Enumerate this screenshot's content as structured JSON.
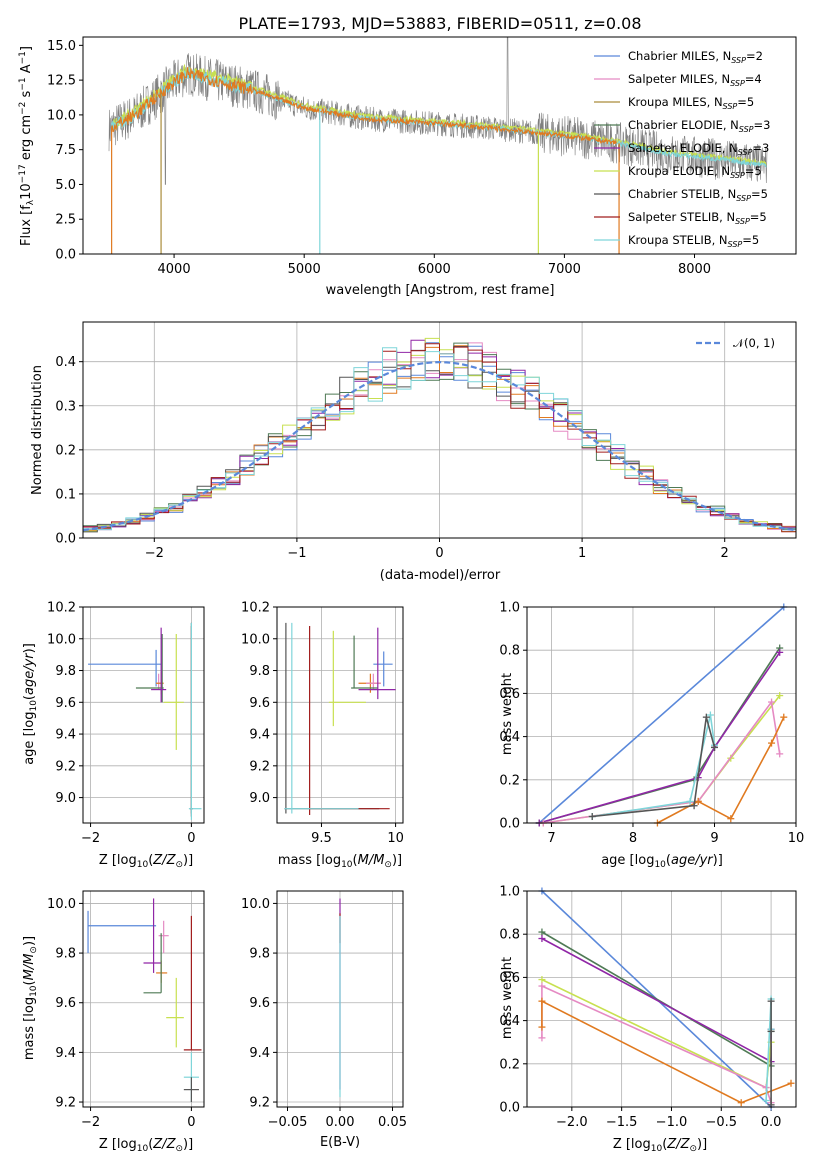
{
  "colors": [
    "#5a88da",
    "#e58ac3",
    "#aa8c3a",
    "#4f7a55",
    "#9026a6",
    "#c8e050",
    "#555555",
    "#a11d1d",
    "#7fd5d9",
    "#e07a20"
  ],
  "chart_data": [
    {
      "id": "spectrum",
      "type": "line",
      "title": "PLATE=1793, MJD=53883, FIBERID=0511, z=0.08",
      "xlabel": "wavelength [Angstrom, rest frame]",
      "ylabel": "Flux [f_λ10^−17 erg cm^−2 s^−1 A^−1]",
      "xlim": [
        3300,
        8780
      ],
      "ylim": [
        0,
        15.6
      ],
      "xticks": [
        4000,
        5000,
        6000,
        7000,
        8000
      ],
      "yticks": [
        0.0,
        2.5,
        5.0,
        7.5,
        10.0,
        12.5,
        15.0
      ],
      "continuum": {
        "x": [
          3500,
          3700,
          3950,
          4100,
          4300,
          4600,
          5000,
          5500,
          6000,
          6500,
          7000,
          7400,
          7800,
          8200,
          8550
        ],
        "y": [
          9.0,
          10.0,
          12.0,
          13.0,
          12.5,
          11.8,
          10.5,
          9.7,
          9.4,
          9.0,
          8.5,
          8.0,
          7.2,
          6.8,
          6.4
        ]
      },
      "legend_position": "upper right",
      "series": [
        {
          "name": "Chabrier MILES, N_SSP=2"
        },
        {
          "name": "Salpeter MILES, N_SSP=4"
        },
        {
          "name": "Kroupa MILES, N_SSP=5"
        },
        {
          "name": "Chabrier ELODIE, N_SSP=3"
        },
        {
          "name": "Salpeter ELODIE, N_SSP=3"
        },
        {
          "name": "Kroupa ELODIE, N_SSP=5"
        },
        {
          "name": "Chabrier STELIB, N_SSP=5"
        },
        {
          "name": "Salpeter STELIB, N_SSP=5"
        },
        {
          "name": "Kroupa STELIB, N_SSP=5"
        }
      ]
    },
    {
      "id": "residuals",
      "type": "histogram",
      "xlabel": "(data-model)/error",
      "ylabel": "Normed distribution",
      "xlim": [
        -2.5,
        2.5
      ],
      "ylim": [
        0,
        0.49
      ],
      "xticks": [
        -2,
        -1,
        0,
        1,
        2
      ],
      "yticks": [
        0.0,
        0.1,
        0.2,
        0.3,
        0.4
      ],
      "bin_width": 0.1,
      "reference": {
        "name": "𝒩(0, 1)",
        "type": "gaussian",
        "mean": 0,
        "sigma": 1
      },
      "legend_position": "upper right",
      "grid": true
    },
    {
      "id": "age_vs_Z",
      "type": "errorbar",
      "xlabel": "Z [log10(Z/Z⊙)]",
      "ylabel": "age [log10(age/yr)]",
      "xlim": [
        -2.15,
        0.25
      ],
      "ylim": [
        8.84,
        10.2
      ],
      "xticks": [
        -2,
        0
      ],
      "yticks": [
        9.0,
        9.2,
        9.4,
        9.6,
        9.8,
        10.0,
        10.2
      ],
      "points": [
        {
          "x": -0.7,
          "xlo": -2.05,
          "xhi": -0.6,
          "y": 9.84,
          "ylo": 9.7,
          "yhi": 9.93,
          "c": 0
        },
        {
          "x": -0.65,
          "xlo": -0.7,
          "xhi": -0.6,
          "y": 9.72,
          "ylo": 9.68,
          "yhi": 9.78,
          "c": 1
        },
        {
          "x": -0.6,
          "xlo": -0.7,
          "xhi": -0.55,
          "y": 9.72,
          "ylo": 9.65,
          "yhi": 9.79,
          "c": 9
        },
        {
          "x": -0.58,
          "xlo": -1.1,
          "xhi": -0.55,
          "y": 9.69,
          "ylo": 9.6,
          "yhi": 10.03,
          "c": 3
        },
        {
          "x": -0.6,
          "xlo": -0.8,
          "xhi": -0.5,
          "y": 9.68,
          "ylo": 9.6,
          "yhi": 10.07,
          "c": 4
        },
        {
          "x": -0.3,
          "xlo": -0.55,
          "xhi": -0.15,
          "y": 9.6,
          "ylo": 9.3,
          "yhi": 10.03,
          "c": 5
        },
        {
          "x": 0.0,
          "xlo": -0.02,
          "xhi": 0.02,
          "y": 8.93,
          "ylo": 8.9,
          "yhi": 10.1,
          "c": 6
        },
        {
          "x": 0.0,
          "xlo": -0.03,
          "xhi": 0.03,
          "y": 8.93,
          "ylo": 8.88,
          "yhi": 10.08,
          "c": 7
        },
        {
          "x": 0.0,
          "xlo": -0.05,
          "xhi": 0.2,
          "y": 8.93,
          "ylo": 8.86,
          "yhi": 10.1,
          "c": 8
        }
      ]
    },
    {
      "id": "age_vs_mass",
      "type": "errorbar",
      "xlabel": "mass [log10(M/M⊙)]",
      "ylabel": "",
      "xlim": [
        9.2,
        10.05
      ],
      "ylim": [
        8.84,
        10.2
      ],
      "xticks": [
        9.5,
        10.0
      ],
      "yticks": [
        9.0,
        9.2,
        9.4,
        9.6,
        9.8,
        10.0,
        10.2
      ],
      "points": [
        {
          "x": 9.92,
          "xlo": 9.85,
          "xhi": 9.98,
          "y": 9.84,
          "ylo": 9.7,
          "yhi": 9.92,
          "c": 0
        },
        {
          "x": 9.83,
          "xlo": 9.75,
          "xhi": 9.9,
          "y": 9.72,
          "ylo": 9.66,
          "yhi": 9.78,
          "c": 9
        },
        {
          "x": 9.85,
          "xlo": 9.8,
          "xhi": 9.9,
          "y": 9.72,
          "ylo": 9.68,
          "yhi": 9.78,
          "c": 1
        },
        {
          "x": 9.72,
          "xlo": 9.7,
          "xhi": 9.88,
          "y": 9.69,
          "ylo": 9.69,
          "yhi": 10.02,
          "c": 3
        },
        {
          "x": 9.88,
          "xlo": 9.75,
          "xhi": 10.0,
          "y": 9.68,
          "ylo": 9.62,
          "yhi": 10.07,
          "c": 4
        },
        {
          "x": 9.58,
          "xlo": 9.55,
          "xhi": 9.8,
          "y": 9.6,
          "ylo": 9.45,
          "yhi": 10.05,
          "c": 5
        },
        {
          "x": 9.26,
          "xlo": 9.25,
          "xhi": 9.89,
          "y": 8.93,
          "ylo": 8.9,
          "yhi": 10.1,
          "c": 6
        },
        {
          "x": 9.42,
          "xlo": 9.42,
          "xhi": 9.96,
          "y": 8.93,
          "ylo": 8.89,
          "yhi": 10.08,
          "c": 7
        },
        {
          "x": 9.3,
          "xlo": 9.25,
          "xhi": 9.75,
          "y": 8.93,
          "ylo": 8.9,
          "yhi": 10.1,
          "c": 8
        }
      ]
    },
    {
      "id": "weight_vs_age",
      "type": "line",
      "xlabel": "age [log10(age/yr)]",
      "ylabel": "mass weight",
      "xlim": [
        6.7,
        10.0
      ],
      "ylim": [
        0,
        1.0
      ],
      "xticks": [
        7,
        8,
        9,
        10
      ],
      "yticks": [
        0.0,
        0.2,
        0.4,
        0.6,
        0.8,
        1.0
      ],
      "grid": true,
      "series": [
        {
          "c": 0,
          "x": [
            6.85,
            9.85
          ],
          "y": [
            0.0,
            1.0
          ]
        },
        {
          "c": 3,
          "x": [
            6.85,
            8.75,
            9.0,
            9.8
          ],
          "y": [
            0.0,
            0.2,
            0.35,
            0.81
          ]
        },
        {
          "c": 4,
          "x": [
            6.85,
            8.8,
            9.0,
            9.8
          ],
          "y": [
            0.0,
            0.21,
            0.35,
            0.79
          ]
        },
        {
          "c": 5,
          "x": [
            6.9,
            8.8,
            9.2,
            9.8
          ],
          "y": [
            0.0,
            0.1,
            0.3,
            0.59
          ]
        },
        {
          "c": 1,
          "x": [
            6.9,
            8.8,
            9.7,
            9.8
          ],
          "y": [
            0.0,
            0.1,
            0.56,
            0.32
          ]
        },
        {
          "c": 9,
          "x": [
            8.3,
            8.8,
            9.2,
            9.7,
            9.85
          ],
          "y": [
            0.0,
            0.1,
            0.02,
            0.37,
            0.49
          ]
        },
        {
          "c": 8,
          "x": [
            7.5,
            8.7,
            8.95,
            9.0
          ],
          "y": [
            0.03,
            0.1,
            0.5,
            0.36
          ]
        },
        {
          "c": 6,
          "x": [
            7.5,
            8.75,
            8.9,
            9.0
          ],
          "y": [
            0.03,
            0.08,
            0.49,
            0.35
          ]
        }
      ]
    },
    {
      "id": "mass_vs_Z",
      "type": "errorbar",
      "xlabel": "Z [log10(Z/Z⊙)]",
      "ylabel": "mass [log10(M/M⊙)]",
      "xlim": [
        -2.15,
        0.25
      ],
      "ylim": [
        9.18,
        10.05
      ],
      "xticks": [
        -2,
        0
      ],
      "yticks": [
        9.2,
        9.4,
        9.6,
        9.8,
        10.0
      ],
      "points": [
        {
          "x": -2.05,
          "xlo": -2.05,
          "xhi": -0.7,
          "y": 9.91,
          "ylo": 9.8,
          "yhi": 9.97,
          "c": 0
        },
        {
          "x": -0.55,
          "xlo": -0.65,
          "xhi": -0.45,
          "y": 9.87,
          "ylo": 9.8,
          "yhi": 9.93,
          "c": 1
        },
        {
          "x": -0.6,
          "xlo": -0.7,
          "xhi": -0.48,
          "y": 9.72,
          "ylo": 9.68,
          "yhi": 9.77,
          "c": 9
        },
        {
          "x": -0.75,
          "xlo": -0.95,
          "xhi": -0.6,
          "y": 9.76,
          "ylo": 9.72,
          "yhi": 10.02,
          "c": 4
        },
        {
          "x": -0.6,
          "xlo": -0.95,
          "xhi": -0.6,
          "y": 9.64,
          "ylo": 9.64,
          "yhi": 9.88,
          "c": 3
        },
        {
          "x": -0.3,
          "xlo": -0.5,
          "xhi": -0.15,
          "y": 9.54,
          "ylo": 9.42,
          "yhi": 9.7,
          "c": 5
        },
        {
          "x": 0.0,
          "xlo": -0.15,
          "xhi": 0.2,
          "y": 9.41,
          "ylo": 9.41,
          "yhi": 9.95,
          "c": 7
        },
        {
          "x": 0.0,
          "xlo": -0.15,
          "xhi": 0.15,
          "y": 9.3,
          "ylo": 9.2,
          "yhi": 9.4,
          "c": 8
        },
        {
          "x": 0.0,
          "xlo": -0.15,
          "xhi": 0.15,
          "y": 9.25,
          "ylo": 9.2,
          "yhi": 9.3,
          "c": 6
        }
      ]
    },
    {
      "id": "mass_vs_ebv",
      "type": "errorbar",
      "xlabel": "E(B-V)",
      "ylabel": "",
      "xlim": [
        -0.06,
        0.06
      ],
      "ylim": [
        9.18,
        10.05
      ],
      "xticks": [
        -0.05,
        0.0,
        0.05
      ],
      "yticks": [
        9.2,
        9.4,
        9.6,
        9.8,
        10.0
      ],
      "points": [
        {
          "x": 0.0,
          "xlo": 0.0,
          "xhi": 0.0,
          "y": 9.9,
          "ylo": 9.25,
          "yhi": 10.02,
          "c": 4
        },
        {
          "x": 0.0,
          "xlo": 0.0,
          "xhi": 0.0,
          "y": 9.9,
          "ylo": 9.84,
          "yhi": 9.96,
          "c": 7
        },
        {
          "x": 0.0,
          "xlo": 0.0,
          "xhi": 0.0,
          "y": 9.6,
          "ylo": 9.22,
          "yhi": 9.95,
          "c": 8
        }
      ]
    },
    {
      "id": "weight_vs_Z",
      "type": "line",
      "xlabel": "Z [log10(Z/Z⊙)]",
      "ylabel": "mass weight",
      "xlim": [
        -2.45,
        0.25
      ],
      "ylim": [
        0,
        1.0
      ],
      "xticks": [
        -2.0,
        -1.5,
        -1.0,
        -0.5,
        0.0
      ],
      "yticks": [
        0.0,
        0.2,
        0.4,
        0.6,
        0.8,
        1.0
      ],
      "grid": true,
      "series": [
        {
          "c": 0,
          "x": [
            -2.3,
            0.0
          ],
          "y": [
            1.0,
            0.0
          ]
        },
        {
          "c": 3,
          "x": [
            -2.3,
            0.0,
            0.0
          ],
          "y": [
            0.81,
            0.19,
            0.35
          ]
        },
        {
          "c": 4,
          "x": [
            -2.3,
            0.0,
            0.0
          ],
          "y": [
            0.78,
            0.21,
            0.36
          ]
        },
        {
          "c": 5,
          "x": [
            -2.3,
            -0.05,
            0.0
          ],
          "y": [
            0.59,
            0.09,
            0.3
          ]
        },
        {
          "c": 1,
          "x": [
            -2.3,
            -2.3,
            -0.05,
            0.0
          ],
          "y": [
            0.32,
            0.56,
            0.09,
            0.02
          ]
        },
        {
          "c": 9,
          "x": [
            -2.3,
            -2.3,
            -0.3,
            0.2
          ],
          "y": [
            0.37,
            0.49,
            0.02,
            0.11
          ]
        },
        {
          "c": 8,
          "x": [
            -0.05,
            0.0,
            0.0
          ],
          "y": [
            0.03,
            0.5,
            0.36
          ]
        },
        {
          "c": 6,
          "x": [
            0.0,
            0.0,
            0.0
          ],
          "y": [
            0.01,
            0.49,
            0.35
          ]
        }
      ]
    }
  ]
}
